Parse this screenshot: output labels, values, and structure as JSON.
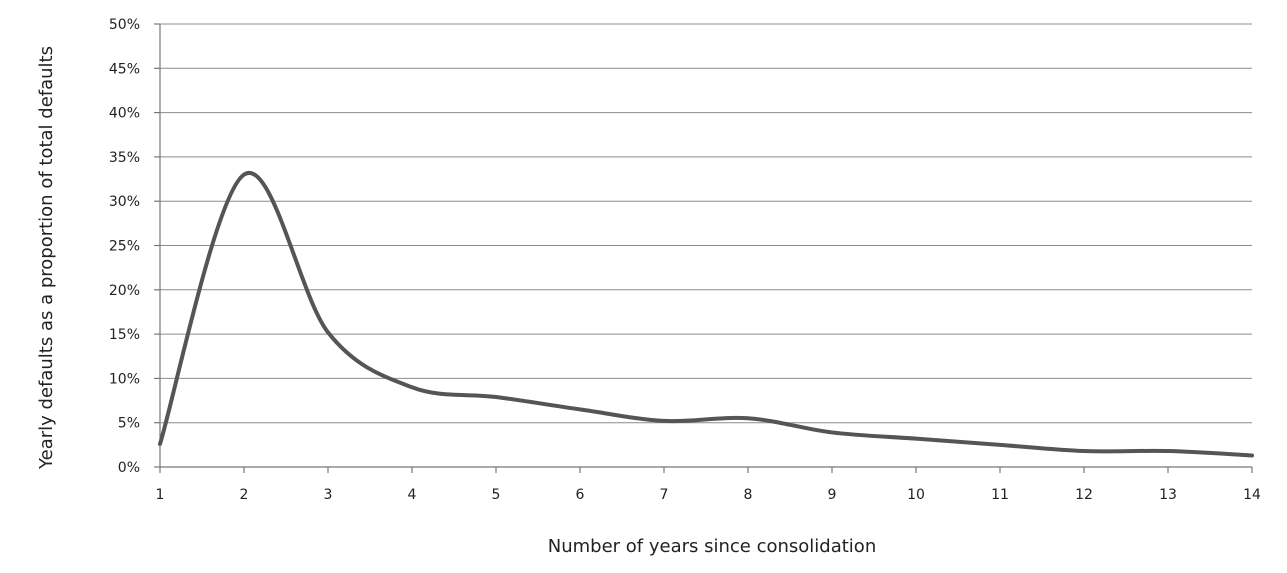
{
  "chart_data": {
    "type": "line",
    "title": "",
    "xlabel": "Number of years since consolidation",
    "ylabel": "Yearly defaults as a proportion of total defaults",
    "x": [
      1,
      2,
      3,
      4,
      5,
      6,
      7,
      8,
      9,
      10,
      11,
      12,
      13,
      14
    ],
    "xticks": [
      "1",
      "2",
      "3",
      "4",
      "5",
      "6",
      "7",
      "8",
      "9",
      "10",
      "11",
      "12",
      "13",
      "14"
    ],
    "yticks": [
      "0%",
      "5%",
      "10%",
      "15%",
      "20%",
      "25%",
      "30%",
      "35%",
      "40%",
      "45%",
      "50%"
    ],
    "ylim": [
      0,
      50
    ],
    "xlim": [
      1,
      14
    ],
    "grid": true,
    "series": [
      {
        "name": "Yearly defaults",
        "color": "#555555",
        "values": [
          2.6,
          33.0,
          15.2,
          9.0,
          7.9,
          6.5,
          5.2,
          5.5,
          3.9,
          3.2,
          2.5,
          1.8,
          1.8,
          1.3
        ]
      }
    ]
  }
}
